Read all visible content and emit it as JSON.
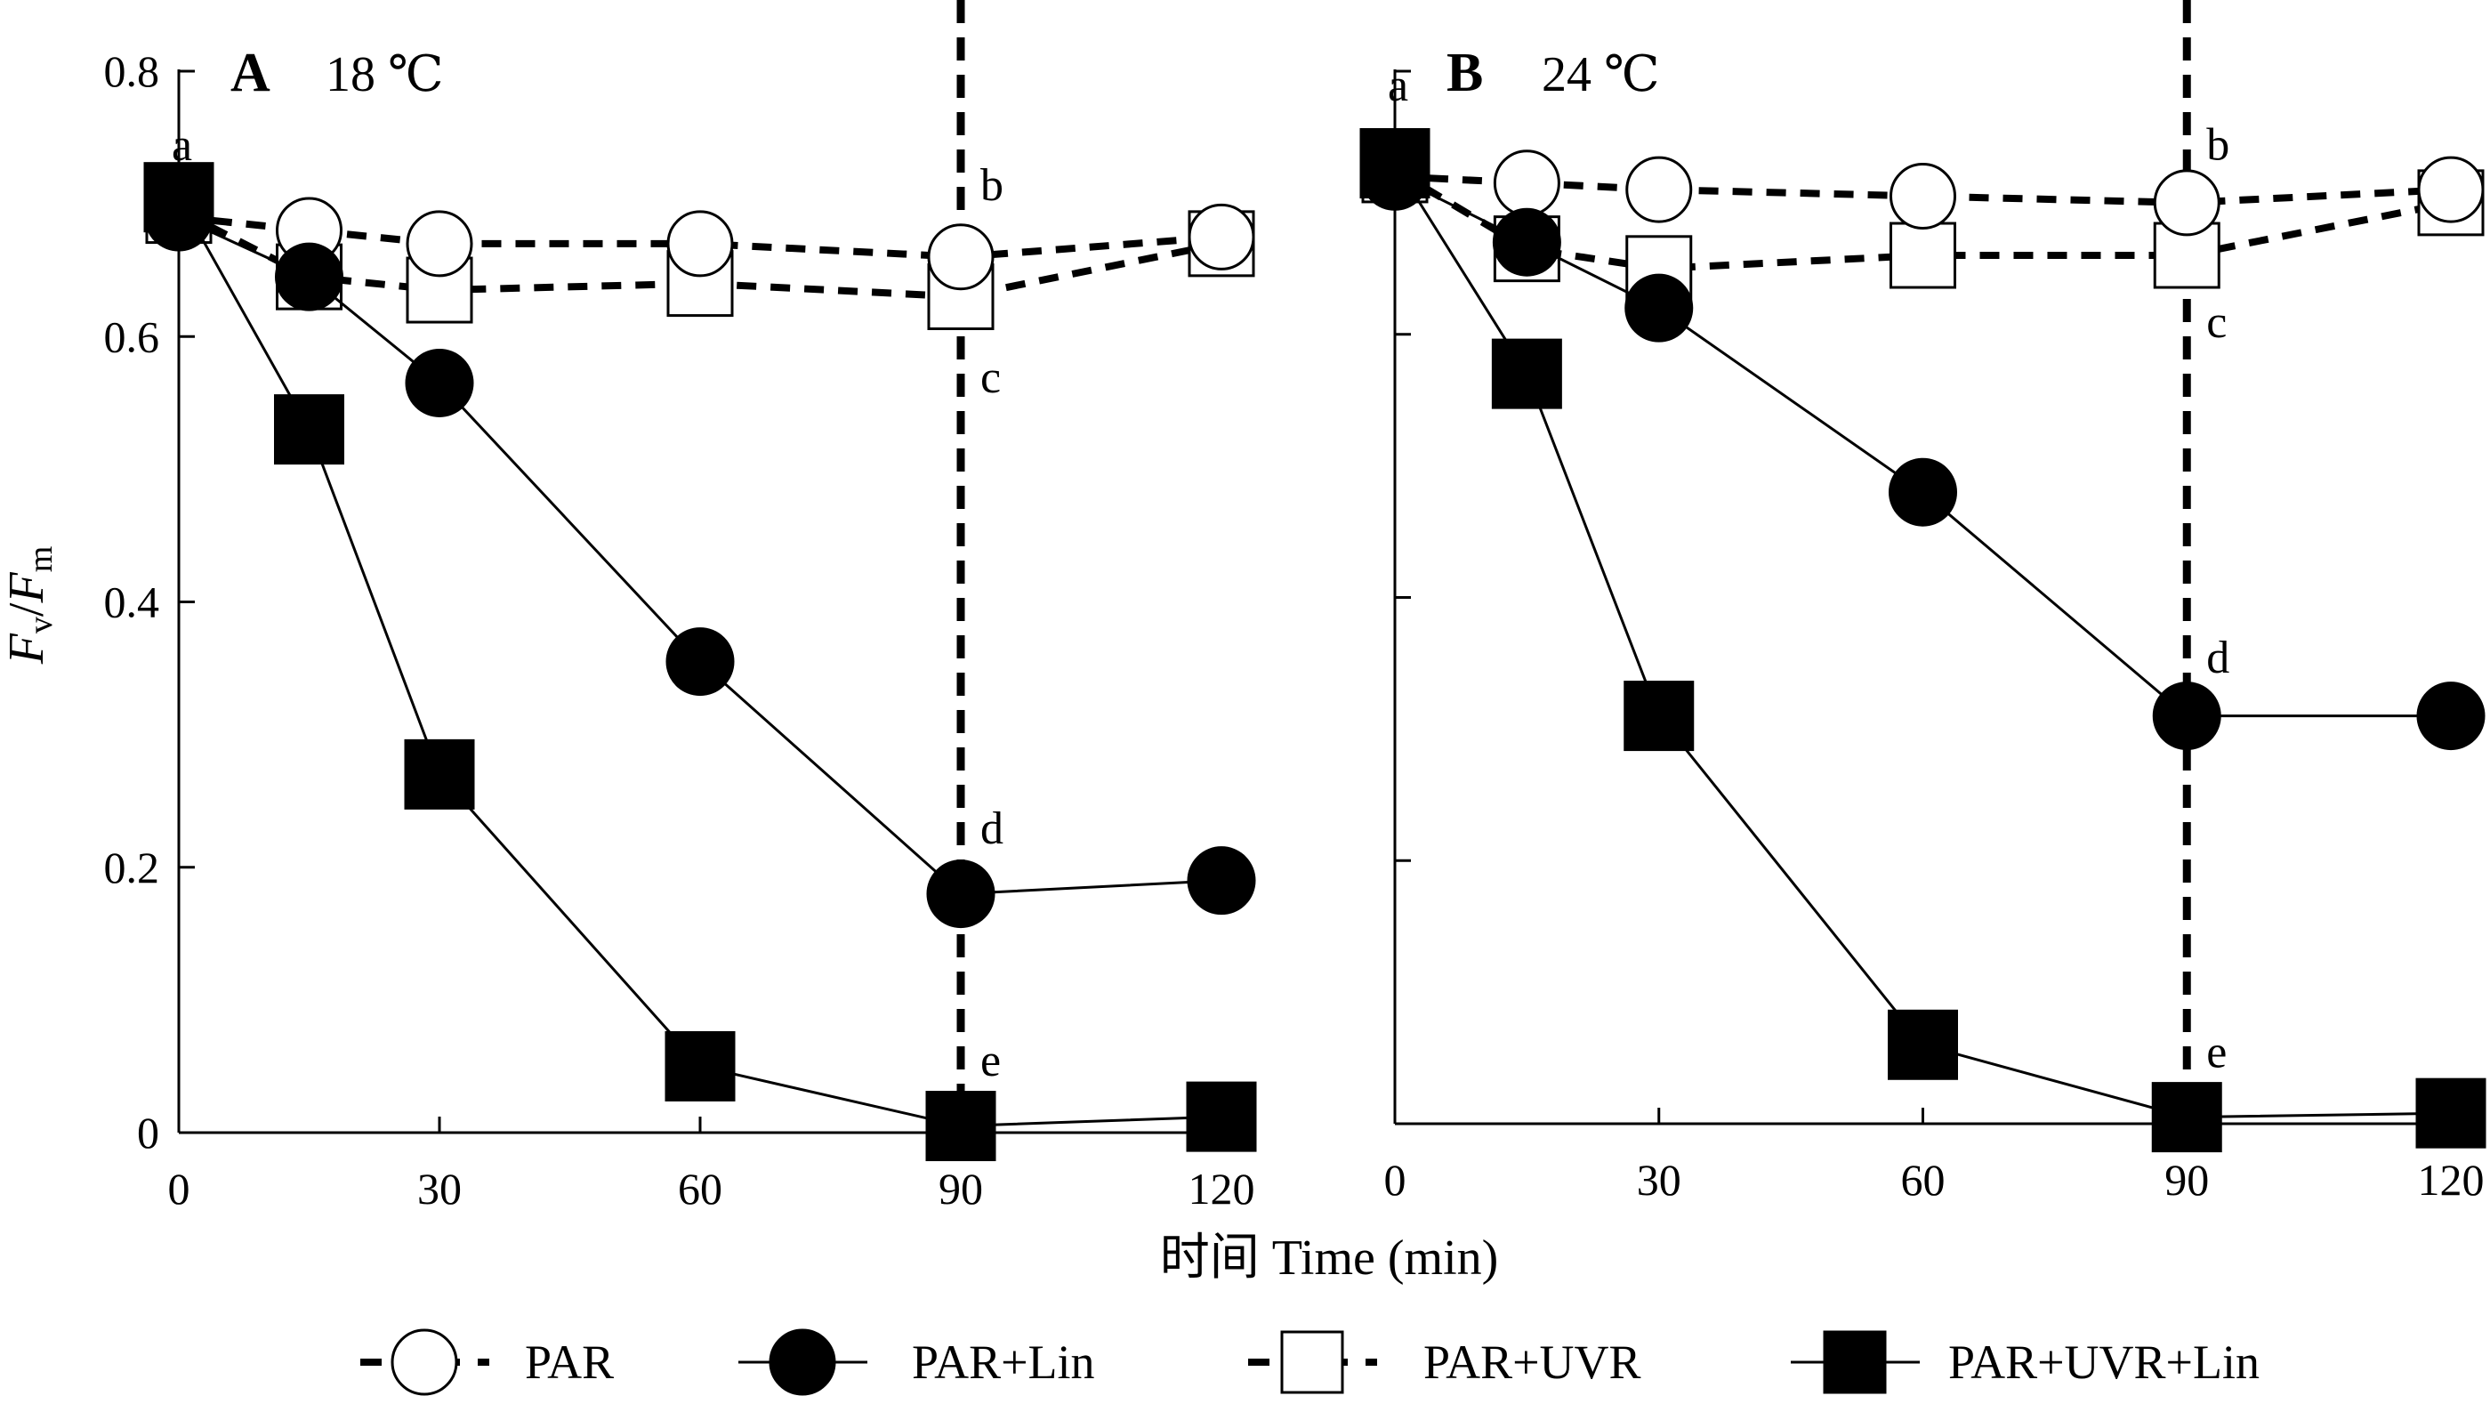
{
  "chart_data": {
    "type": "line",
    "x": [
      0,
      15,
      30,
      60,
      90,
      120
    ],
    "xlabel": "时间 Time (min)",
    "ylabel_parts": {
      "F1": "F",
      "sub1": "v",
      "slash": "/",
      "F2": "F",
      "sub2": "m"
    },
    "ylabel": "Fv/Fm",
    "xlim": [
      0,
      120
    ],
    "ylim": [
      0,
      0.8
    ],
    "x_ticks": [
      "0",
      "30",
      "60",
      "90",
      "120"
    ],
    "y_ticks": [
      "0",
      "0.2",
      "0.4",
      "0.6",
      "0.8"
    ],
    "marker_line": 90,
    "panels": [
      {
        "letter": "A",
        "temp": "18 ℃",
        "series": [
          {
            "name": "PAR",
            "values": [
              0.69,
              0.68,
              0.67,
              0.67,
              0.66,
              0.675
            ]
          },
          {
            "name": "PAR+Lin",
            "values": [
              0.69,
              0.645,
              0.565,
              0.355,
              0.18,
              0.19
            ]
          },
          {
            "name": "PAR+UVR",
            "values": [
              0.695,
              0.645,
              0.635,
              0.64,
              0.63,
              0.67
            ]
          },
          {
            "name": "PAR+UVR+Lin",
            "values": [
              0.705,
              0.53,
              0.27,
              0.05,
              0.005,
              0.012
            ]
          }
        ],
        "sig_labels": [
          {
            "text": "a",
            "x": 0,
            "y": 0.745
          },
          {
            "text": "b",
            "x": 90,
            "y": 0.715
          },
          {
            "text": "c",
            "x": 90,
            "y": 0.57
          },
          {
            "text": "d",
            "x": 90,
            "y": 0.23
          },
          {
            "text": "e",
            "x": 90,
            "y": 0.055
          }
        ]
      },
      {
        "letter": "B",
        "temp": "24 ℃",
        "series": [
          {
            "name": "PAR",
            "values": [
              0.72,
              0.715,
              0.71,
              0.705,
              0.7,
              0.71
            ]
          },
          {
            "name": "PAR+Lin",
            "values": [
              0.72,
              0.67,
              0.62,
              0.48,
              0.31,
              0.31
            ]
          },
          {
            "name": "PAR+UVR",
            "values": [
              0.725,
              0.665,
              0.65,
              0.66,
              0.66,
              0.7
            ]
          },
          {
            "name": "PAR+UVR+Lin",
            "values": [
              0.73,
              0.57,
              0.31,
              0.06,
              0.005,
              0.008
            ]
          }
        ],
        "sig_labels": [
          {
            "text": "a",
            "x": 0,
            "y": 0.79
          },
          {
            "text": "b",
            "x": 90,
            "y": 0.745
          },
          {
            "text": "c",
            "x": 90,
            "y": 0.61
          },
          {
            "text": "d",
            "x": 90,
            "y": 0.355
          },
          {
            "text": "e",
            "x": 90,
            "y": 0.055
          }
        ]
      }
    ],
    "legend": [
      "PAR",
      "PAR+Lin",
      "PAR+UVR",
      "PAR+UVR+Lin"
    ]
  }
}
